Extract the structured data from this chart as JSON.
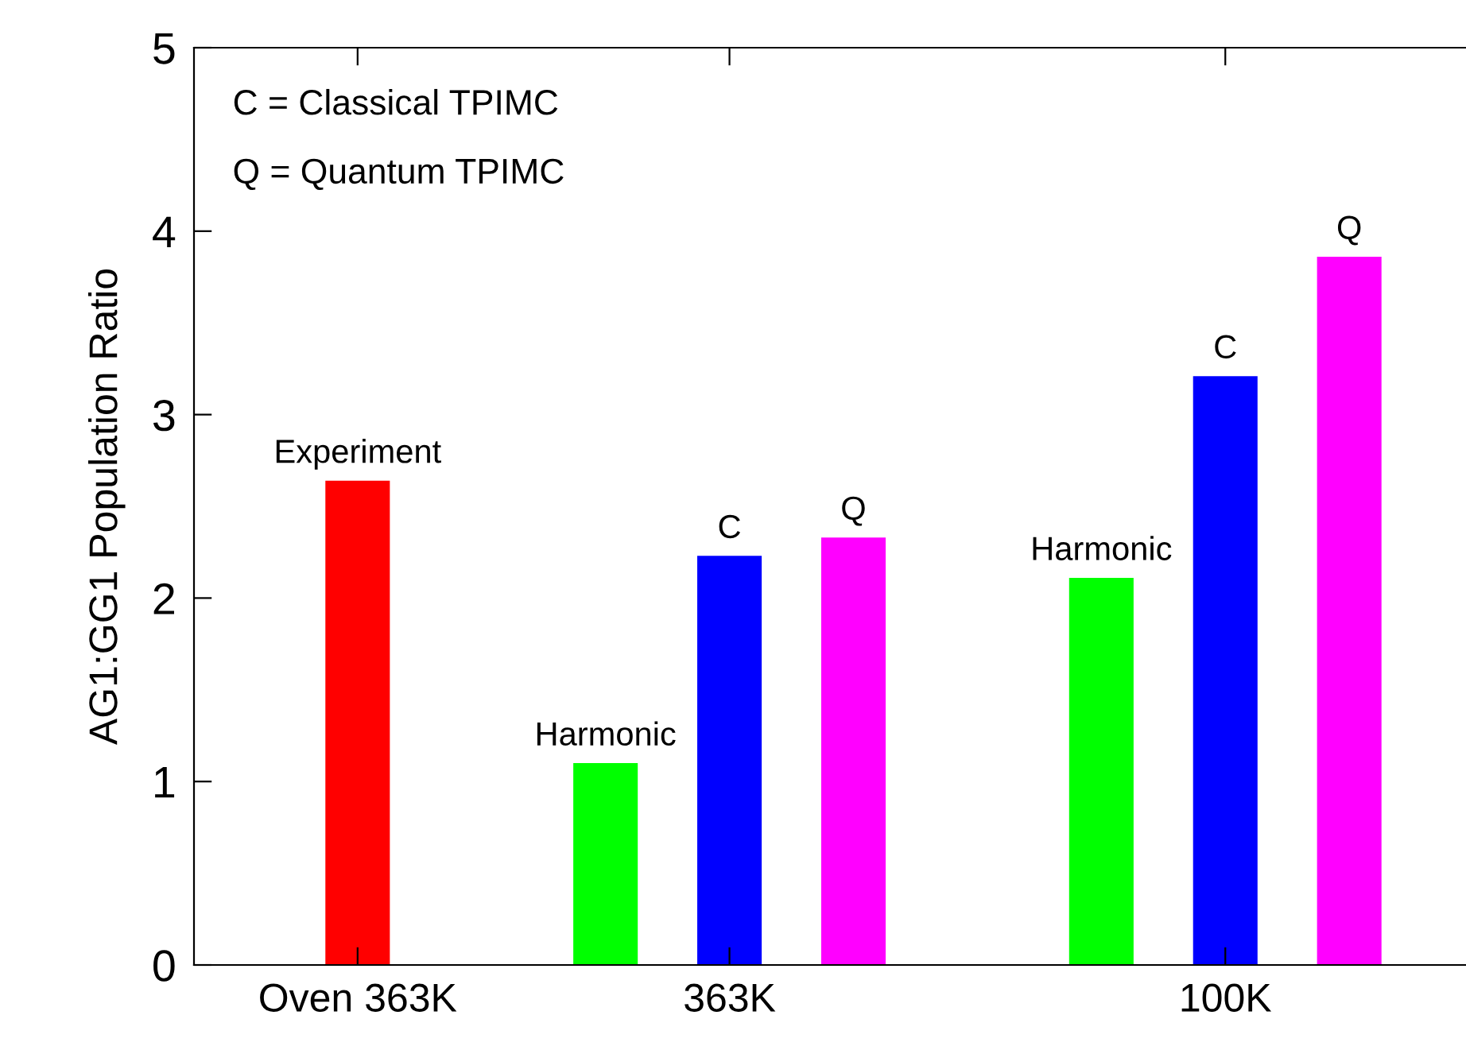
{
  "chart_data": {
    "type": "bar",
    "ylabel": "AG1:GG1 Population Ratio",
    "categories": [
      "Oven 363K",
      null,
      null,
      "363K",
      null,
      null,
      null,
      "100K",
      null
    ],
    "series": [
      {
        "name": "Experiment",
        "color": "#ff0000",
        "values": [
          2.64,
          null,
          null,
          null,
          null,
          null,
          null,
          null,
          null
        ]
      },
      {
        "name": "Harmonic",
        "color": "#00ff00",
        "values": [
          null,
          null,
          1.1,
          null,
          null,
          null,
          2.11,
          null,
          null
        ]
      },
      {
        "name": "C",
        "color": "#0000ff",
        "values": [
          null,
          null,
          null,
          2.23,
          null,
          null,
          null,
          3.21,
          null
        ]
      },
      {
        "name": "Q",
        "color": "#ff00ff",
        "values": [
          null,
          null,
          null,
          null,
          2.33,
          null,
          null,
          null,
          3.86
        ]
      }
    ],
    "ylim": [
      0,
      5
    ],
    "yticks": [
      0,
      1,
      2,
      3,
      4,
      5
    ],
    "grid": false,
    "legend": false,
    "annotations": [
      "C = Classical TPIMC",
      "Q = Quantum TPIMC"
    ]
  }
}
